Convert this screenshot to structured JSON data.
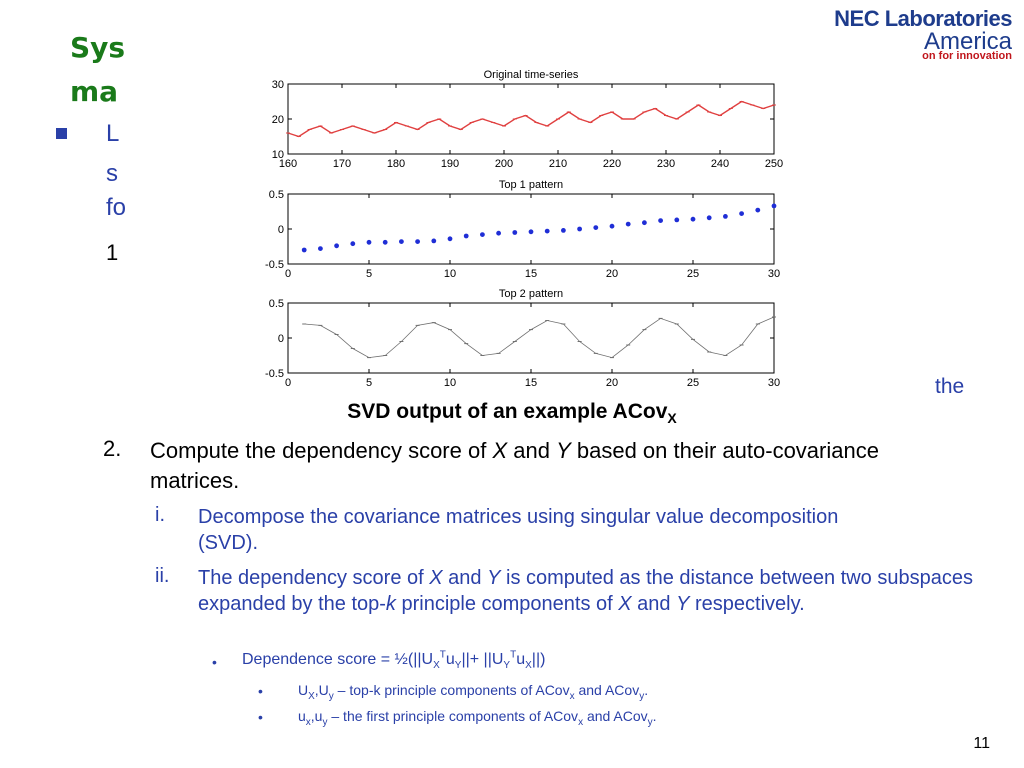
{
  "slide": {
    "title_line1": "Sys",
    "title_line2": "ma",
    "logo_line1": "NEC Laboratories",
    "logo_line2": "America",
    "logo_line3": "on for innovation",
    "partial_letters": [
      "L",
      "s",
      "fo"
    ],
    "partial_number": "1",
    "trailing_word": "the",
    "page_number": "11"
  },
  "caption": {
    "main": "SVD output of an example ACov",
    "sub": "X"
  },
  "step2": {
    "number": "2.",
    "text_a": "Compute the dependency score of ",
    "X": "X",
    "and": " and ",
    "Y": "Y",
    "text_b": " based on their auto-covariance matrices."
  },
  "sub_i": {
    "num": "i.",
    "text": "Decompose the covariance matrices using singular value decomposition (SVD)."
  },
  "sub_ii": {
    "num": "ii.",
    "a": "The dependency score of ",
    "X": "X",
    "and": " and ",
    "Y": "Y",
    "b": " is computed as the distance between two subspaces expanded by the top-",
    "k": "k",
    "c": " principle components of ",
    "X2": "X",
    "and2": " and ",
    "Y2": "Y",
    "d": " respectively."
  },
  "dep": {
    "bullet": "•",
    "text": "Dependence score = ½(||U",
    "sub1": "X",
    "sup1": "T",
    "mid1": "u",
    "sub2": "Y",
    "mid2": "||+ ||U",
    "sub3": "Y",
    "sup2": "T",
    "mid3": "u",
    "sub4": "X",
    "end": "||)"
  },
  "note1": {
    "bullet": "•",
    "a": "U",
    "s1": "X",
    "b": ",U",
    "s2": "y",
    "c": " –  top-k principle components of ACov",
    "s3": "x",
    "d": " and ACov",
    "s4": "y",
    "e": "."
  },
  "note2": {
    "bullet": "•",
    "a": "u",
    "s1": "x",
    "b": ",u",
    "s2": "y",
    "c": " – the first principle components of ACov",
    "s3": "x",
    "d": " and ACov",
    "s4": "y",
    "e": "."
  },
  "chart_data": [
    {
      "type": "line",
      "title": "Original time-series",
      "xlim": [
        160,
        250
      ],
      "ylim": [
        10,
        30
      ],
      "xticks": [
        160,
        170,
        180,
        190,
        200,
        210,
        220,
        230,
        240,
        250
      ],
      "yticks": [
        10,
        20,
        30
      ],
      "x": [
        160,
        162,
        164,
        166,
        168,
        170,
        172,
        174,
        176,
        178,
        180,
        182,
        184,
        186,
        188,
        190,
        192,
        194,
        196,
        198,
        200,
        202,
        204,
        206,
        208,
        210,
        212,
        214,
        216,
        218,
        220,
        222,
        224,
        226,
        228,
        230,
        232,
        234,
        236,
        238,
        240,
        242,
        244,
        246,
        248,
        250
      ],
      "values": [
        16,
        15,
        17,
        18,
        16,
        17,
        18,
        17,
        16,
        17,
        19,
        18,
        17,
        19,
        20,
        18,
        17,
        19,
        20,
        19,
        18,
        20,
        21,
        19,
        18,
        20,
        22,
        20,
        19,
        21,
        22,
        20,
        20,
        22,
        23,
        21,
        20,
        22,
        24,
        22,
        21,
        23,
        25,
        24,
        23,
        24
      ],
      "color": "#e04040"
    },
    {
      "type": "scatter",
      "title": "Top 1 pattern",
      "xlim": [
        0,
        30
      ],
      "ylim": [
        -0.5,
        0.5
      ],
      "xticks": [
        0,
        5,
        10,
        15,
        20,
        25,
        30
      ],
      "yticks": [
        -0.5,
        0,
        0.5
      ],
      "x": [
        1,
        2,
        3,
        4,
        5,
        6,
        7,
        8,
        9,
        10,
        11,
        12,
        13,
        14,
        15,
        16,
        17,
        18,
        19,
        20,
        21,
        22,
        23,
        24,
        25,
        26,
        27,
        28,
        29,
        30
      ],
      "values": [
        -0.3,
        -0.28,
        -0.24,
        -0.21,
        -0.19,
        -0.19,
        -0.18,
        -0.18,
        -0.17,
        -0.14,
        -0.1,
        -0.08,
        -0.06,
        -0.05,
        -0.04,
        -0.03,
        -0.02,
        0.0,
        0.02,
        0.04,
        0.07,
        0.09,
        0.12,
        0.13,
        0.14,
        0.16,
        0.18,
        0.22,
        0.27,
        0.33
      ],
      "color": "#1f2ed6"
    },
    {
      "type": "line",
      "title": "Top 2 pattern",
      "xlim": [
        0,
        30
      ],
      "ylim": [
        -0.5,
        0.5
      ],
      "xticks": [
        0,
        5,
        10,
        15,
        20,
        25,
        30
      ],
      "yticks": [
        -0.5,
        0,
        0.5
      ],
      "x": [
        1,
        2,
        3,
        4,
        5,
        6,
        7,
        8,
        9,
        10,
        11,
        12,
        13,
        14,
        15,
        16,
        17,
        18,
        19,
        20,
        21,
        22,
        23,
        24,
        25,
        26,
        27,
        28,
        29,
        30
      ],
      "values": [
        0.2,
        0.18,
        0.05,
        -0.15,
        -0.28,
        -0.25,
        -0.05,
        0.18,
        0.22,
        0.12,
        -0.08,
        -0.25,
        -0.22,
        -0.05,
        0.12,
        0.25,
        0.2,
        -0.05,
        -0.22,
        -0.28,
        -0.1,
        0.12,
        0.28,
        0.2,
        -0.02,
        -0.2,
        -0.25,
        -0.1,
        0.2,
        0.3
      ],
      "color": "#707070"
    }
  ]
}
